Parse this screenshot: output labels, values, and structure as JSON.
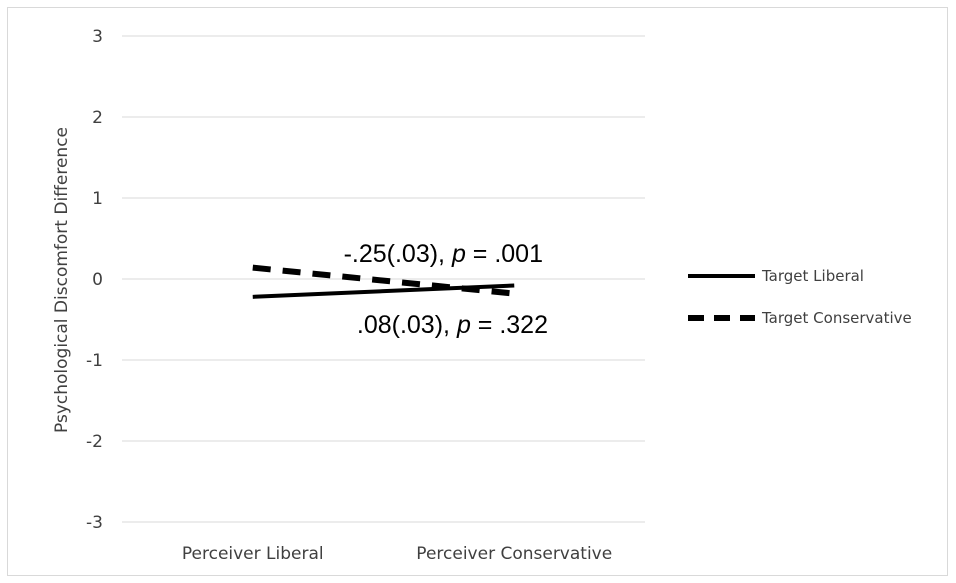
{
  "chart_data": {
    "type": "line",
    "categories": [
      "Perceiver Liberal",
      "Perceiver Conservative"
    ],
    "series": [
      {
        "name": "Target Liberal",
        "values": [
          -0.22,
          -0.08
        ],
        "style": "solid",
        "color": "#000000"
      },
      {
        "name": "Target Conservative",
        "values": [
          0.14,
          -0.18
        ],
        "style": "dashed",
        "color": "#000000"
      }
    ],
    "ylabel": "Psychological Discomfort Difference",
    "ylim": [
      -3,
      3
    ],
    "yticks": [
      3,
      2,
      1,
      0,
      -1,
      -2,
      -3
    ],
    "grid": true,
    "legend_position": "right",
    "annotations": [
      {
        "id": "conservative-slope",
        "prefix": "-.25(.03), ",
        "italic": "p",
        "suffix": " = .001"
      },
      {
        "id": "liberal-slope",
        "prefix": ".08(.03), ",
        "italic": "p",
        "suffix": " = .322"
      }
    ]
  }
}
